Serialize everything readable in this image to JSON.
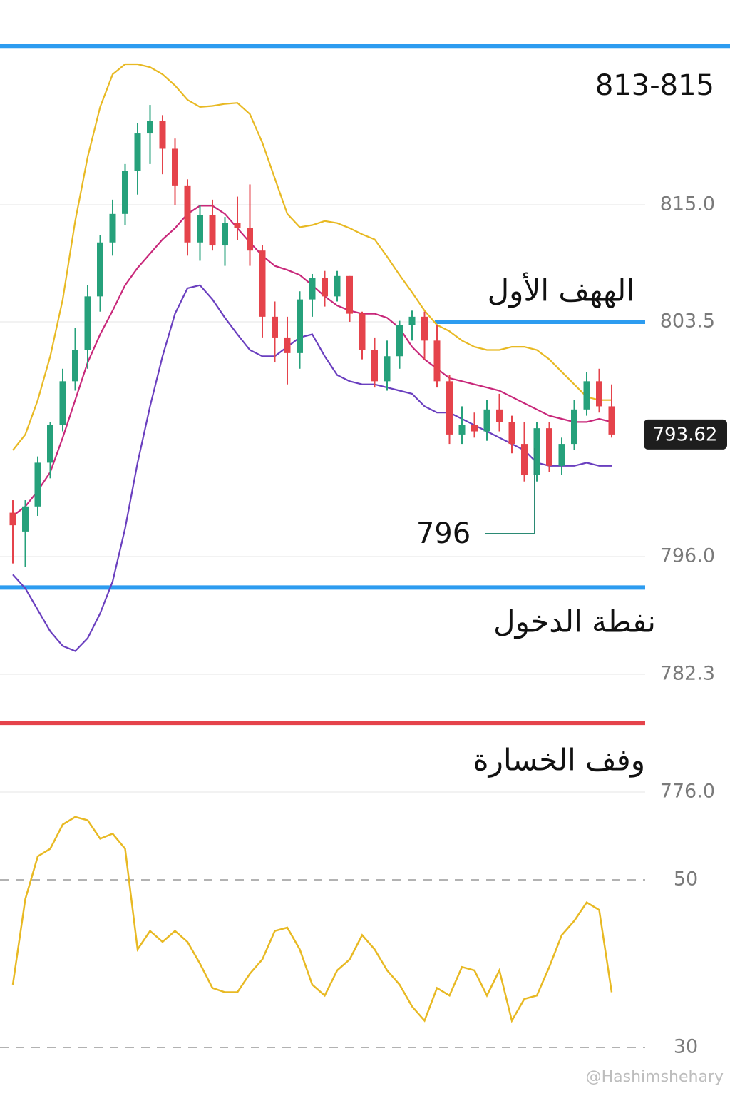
{
  "chart_data": {
    "type": "candlestick",
    "annotation_range": "813‑815",
    "target_label": "الههف الأول",
    "entry_label": "نفطة الدخول",
    "stop_label": "وفف الخسارة",
    "low_label": 796,
    "last_price": 793.62,
    "watermark": "@Hashimshehary",
    "up_color": "#26a17b",
    "down_color": "#e5434b",
    "open": [
      797.4,
      796.8,
      797.6,
      799.0,
      800.2,
      801.6,
      802.6,
      806.0,
      811.3,
      814.1,
      818.3,
      822.0,
      823.2,
      820.5,
      816.9,
      811.3,
      814.0,
      811.0,
      813.2,
      812.7,
      810.5,
      804.0,
      803.0,
      802.5,
      805.7,
      807.8,
      806.0,
      808.0,
      804.3,
      802.6,
      801.6,
      802.4,
      803.4,
      804.0,
      802.9,
      801.6,
      799.9,
      800.2,
      800.0,
      800.7,
      800.3,
      799.6,
      798.6,
      800.1,
      798.9,
      799.6,
      800.7,
      801.6,
      800.8
    ],
    "high": [
      797.8,
      797.8,
      799.2,
      800.3,
      802.0,
      803.3,
      807.1,
      812.0,
      815.5,
      819.0,
      823.0,
      824.8,
      823.8,
      821.5,
      817.5,
      815.0,
      815.5,
      813.8,
      815.8,
      817.0,
      811.0,
      805.5,
      804.0,
      806.5,
      808.2,
      808.5,
      808.5,
      808.0,
      804.5,
      803.0,
      802.9,
      803.6,
      804.6,
      804.5,
      803.4,
      801.8,
      800.8,
      800.6,
      801.0,
      801.2,
      800.5,
      800.3,
      800.3,
      800.3,
      799.8,
      801.0,
      801.9,
      802.0,
      801.5
    ],
    "low": [
      795.2,
      794.8,
      797.3,
      798.5,
      800.0,
      801.3,
      802.0,
      804.5,
      810.0,
      813.0,
      816.0,
      819.0,
      818.0,
      815.0,
      810.0,
      809.5,
      810.5,
      809.0,
      811.5,
      809.0,
      803.0,
      802.2,
      801.5,
      802.0,
      804.0,
      805.0,
      805.5,
      803.5,
      802.3,
      801.4,
      801.3,
      802.0,
      802.9,
      802.3,
      801.4,
      799.6,
      799.6,
      799.8,
      799.7,
      800.0,
      799.3,
      798.4,
      798.4,
      798.7,
      798.6,
      799.4,
      800.5,
      800.6,
      799.8
    ],
    "close": [
      797.0,
      797.6,
      799.0,
      800.2,
      801.6,
      802.6,
      806.0,
      811.3,
      814.1,
      818.3,
      822.0,
      823.2,
      820.5,
      816.9,
      811.3,
      814.0,
      811.0,
      813.2,
      812.7,
      810.5,
      804.0,
      803.0,
      802.5,
      805.7,
      807.8,
      806.0,
      808.0,
      804.3,
      802.6,
      801.6,
      802.4,
      803.4,
      804.0,
      802.9,
      801.6,
      799.9,
      800.2,
      800.0,
      800.7,
      800.3,
      799.6,
      798.6,
      800.1,
      798.9,
      799.6,
      800.7,
      801.6,
      800.8,
      799.9
    ],
    "overlays": [
      {
        "color": "#e8b923",
        "values": [
          799.4,
          799.9,
          801.0,
          802.4,
          805.7,
          813.4,
          819.7,
          824.6,
          827.8,
          828.8,
          828.8,
          828.5,
          827.8,
          826.7,
          825.3,
          824.6,
          824.7,
          824.9,
          825.0,
          823.9,
          821.1,
          817.6,
          814.1,
          812.8,
          813.0,
          813.4,
          813.2,
          812.7,
          812.1,
          811.6,
          809.9,
          808.1,
          806.4,
          804.6,
          803.4,
          803.2,
          802.9,
          802.7,
          802.6,
          802.6,
          802.7,
          802.7,
          802.6,
          802.3,
          801.9,
          801.5,
          801.1,
          801.0,
          801.0
        ]
      },
      {
        "color": "#c8287a",
        "values": [
          797.3,
          797.6,
          798.1,
          798.7,
          799.8,
          801.0,
          802.2,
          803.1,
          804.6,
          807.1,
          808.8,
          810.2,
          811.6,
          812.7,
          814.1,
          814.9,
          814.9,
          814.1,
          812.7,
          811.3,
          810.0,
          809.0,
          808.6,
          808.1,
          807.1,
          806.0,
          805.1,
          804.6,
          804.3,
          804.3,
          803.9,
          803.3,
          802.7,
          802.3,
          802.0,
          801.7,
          801.6,
          801.5,
          801.4,
          801.3,
          801.1,
          800.9,
          800.7,
          800.5,
          800.4,
          800.3,
          800.3,
          800.4,
          800.3
        ]
      },
      {
        "color": "#6a3fbf",
        "values": [
          793.9,
          792.3,
          789.8,
          787.3,
          785.6,
          785.0,
          786.5,
          789.4,
          793.1,
          796.9,
          799.0,
          800.8,
          802.4,
          804.3,
          806.8,
          807.1,
          805.7,
          803.9,
          803.1,
          802.6,
          802.4,
          802.4,
          802.7,
          803.0,
          803.1,
          802.4,
          801.8,
          801.6,
          801.5,
          801.5,
          801.4,
          801.3,
          801.2,
          800.8,
          800.6,
          800.6,
          800.4,
          800.2,
          800.0,
          799.8,
          799.6,
          799.4,
          799.0,
          798.9,
          798.9,
          798.9,
          799.0,
          798.9,
          798.9
        ]
      }
    ],
    "levels": [
      {
        "value": 830.6,
        "color": "#2d9cf0"
      },
      {
        "value": 803.5,
        "color": "#2d9cf0"
      },
      {
        "value": 792.4,
        "color": "#2d9cf0"
      },
      {
        "value": 779.7,
        "color": "#e5434b"
      }
    ],
    "ylim": [
      775.6,
      835.1
    ],
    "yticks": [
      {
        "value": 815,
        "label": "815.0"
      },
      803.5,
      {
        "value": 796,
        "label": "796.0"
      },
      782.3,
      {
        "value": 776,
        "label": "776.0"
      }
    ],
    "rsi": {
      "type": "line",
      "color": "#e8b923",
      "values": [
        37.5,
        47.7,
        52.8,
        53.7,
        56.6,
        57.5,
        57.1,
        54.9,
        55.5,
        53.7,
        41.7,
        43.9,
        42.6,
        43.9,
        42.6,
        40.0,
        37.1,
        36.6,
        36.6,
        38.8,
        40.5,
        43.9,
        44.3,
        41.7,
        37.5,
        36.2,
        39.2,
        40.5,
        43.4,
        41.7,
        39.2,
        37.5,
        34.9,
        33.2,
        37.1,
        36.2,
        39.6,
        39.2,
        36.2,
        39.2,
        33.2,
        35.8,
        36.2,
        39.6,
        43.4,
        45.1,
        47.3,
        46.4,
        36.6
      ],
      "ylim": [
        25,
        60
      ],
      "yticks": [
        50,
        30
      ]
    }
  }
}
